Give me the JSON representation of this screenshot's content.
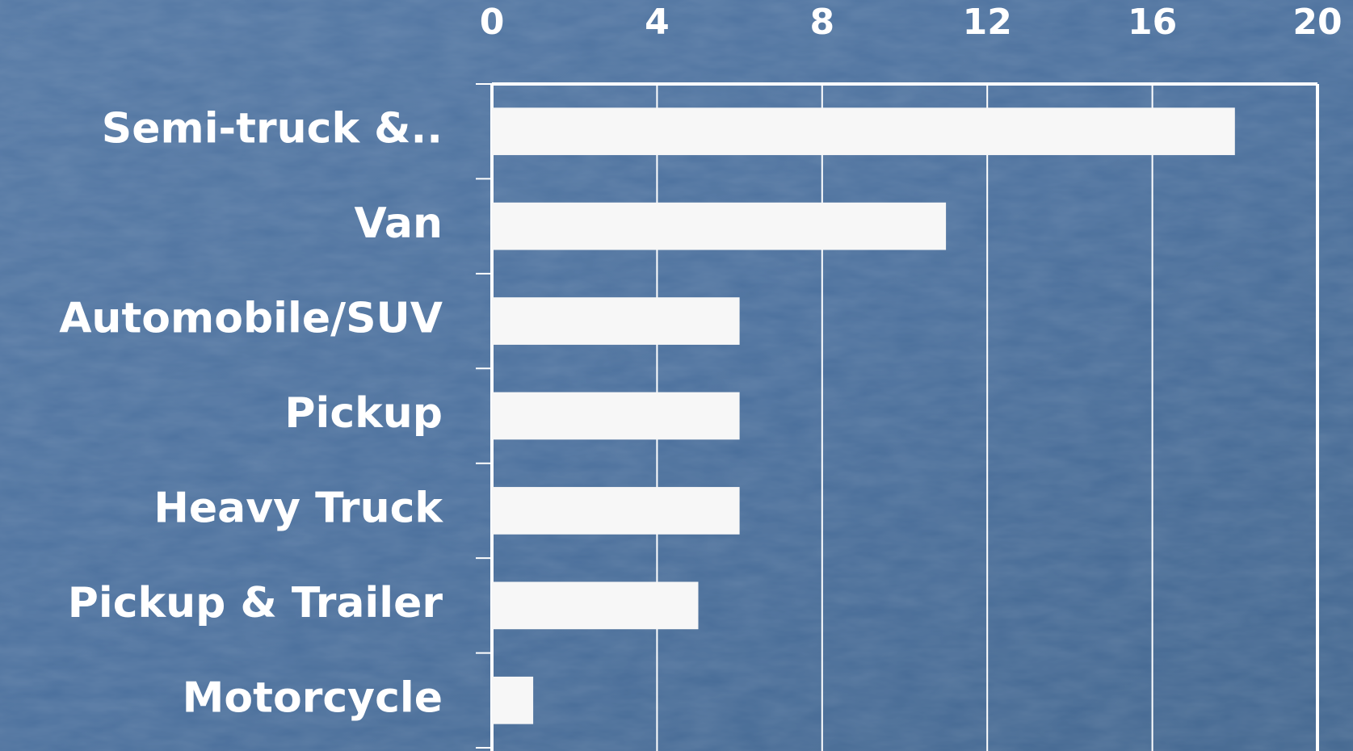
{
  "chart_data": {
    "type": "bar",
    "orientation": "horizontal",
    "categories": [
      "Semi-truck &..",
      "Van",
      "Automobile/SUV",
      "Pickup",
      "Heavy Truck",
      "Pickup & Trailer",
      "Motorcycle"
    ],
    "values": [
      18,
      11,
      6,
      6,
      6,
      5,
      1
    ],
    "color": "#f7f7f7",
    "xlim": [
      0,
      20
    ],
    "xticks": [
      0,
      4,
      8,
      12,
      16,
      20
    ],
    "grid": true
  }
}
